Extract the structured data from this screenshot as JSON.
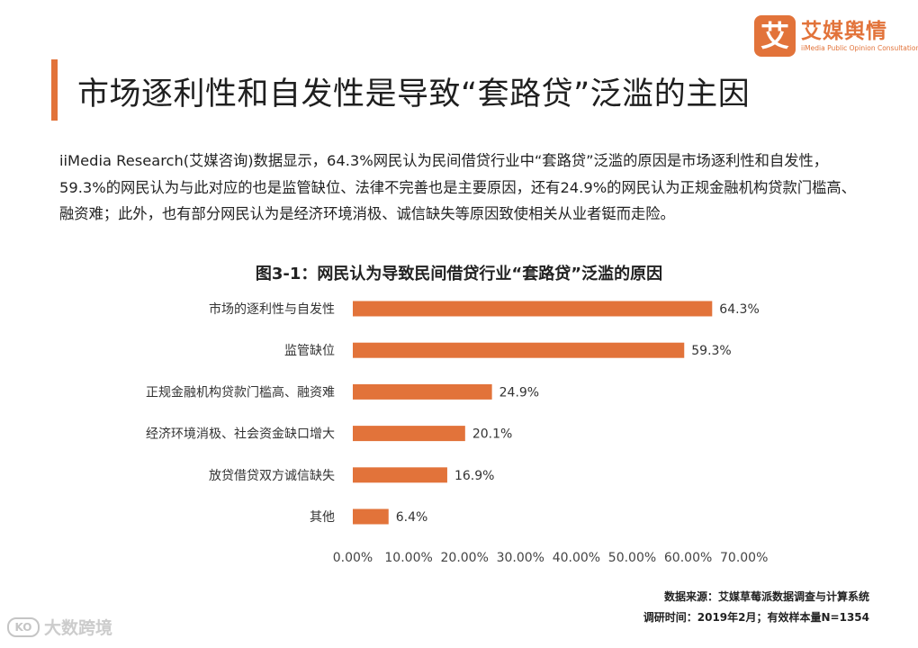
{
  "header": {
    "title": "市场逐利性和自发性是导致“套路贷”泛滥的主因",
    "logo_mark": "艾",
    "logo_name": "艾媒舆情",
    "logo_sub": "iiMedia Public Opinion Consultation"
  },
  "body": {
    "paragraph": "iiMedia Research(艾媒咨询)数据显示，64.3%网民认为民间借贷行业中“套路贷”泛滥的原因是市场逐利性和自发性，59.3%的网民认为与此对应的也是监管缺位、法律不完善也是主要原因，还有24.9%的网民认为正规金融机构贷款门槛高、融资难；此外，也有部分网民认为是经济环境消极、诚信缺失等原因致使相关从业者铤而走险。"
  },
  "chart_data": {
    "type": "bar",
    "orientation": "horizontal",
    "title": "图3-1：网民认为导致民间借贷行业“套路贷”泛滥的原因",
    "categories": [
      "市场的逐利性与自发性",
      "监管缺位",
      "正规金融机构贷款门槛高、融资难",
      "经济环境消极、社会资金缺口增大",
      "放贷借贷双方诚信缺失",
      "其他"
    ],
    "values": [
      64.3,
      59.3,
      24.9,
      20.1,
      16.9,
      6.4
    ],
    "value_labels": [
      "64.3%",
      "59.3%",
      "24.9%",
      "20.1%",
      "16.9%",
      "6.4%"
    ],
    "x_ticks": [
      "0.00%",
      "10.00%",
      "20.00%",
      "30.00%",
      "40.00%",
      "50.00%",
      "60.00%",
      "70.00%"
    ],
    "xlim": [
      0,
      70
    ],
    "grid": false,
    "bar_color": "#e2733a"
  },
  "footer": {
    "source": "数据来源：艾媒草莓派数据调查与计算系统",
    "survey": "调研时间：2019年2月；有效样本量N=1354",
    "watermark_text": "大数跨境",
    "watermark_icon": "KO"
  },
  "colors": {
    "accent": "#e2733a"
  }
}
